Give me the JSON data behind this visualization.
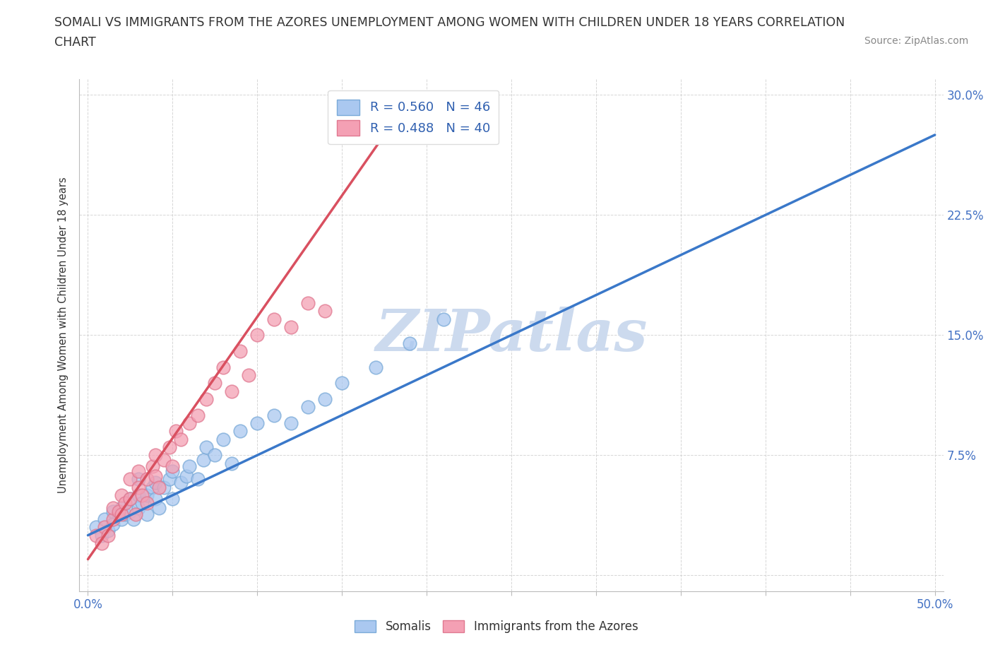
{
  "title_line1": "SOMALI VS IMMIGRANTS FROM THE AZORES UNEMPLOYMENT AMONG WOMEN WITH CHILDREN UNDER 18 YEARS CORRELATION",
  "title_line2": "CHART",
  "source": "Source: ZipAtlas.com",
  "ylabel": "Unemployment Among Women with Children Under 18 years",
  "xlim": [
    -0.005,
    0.505
  ],
  "ylim": [
    -0.01,
    0.31
  ],
  "xticks": [
    0.0,
    0.05,
    0.1,
    0.15,
    0.2,
    0.25,
    0.3,
    0.35,
    0.4,
    0.45,
    0.5
  ],
  "xtick_labels": [
    "0.0%",
    "",
    "",
    "",
    "",
    "",
    "",
    "",
    "",
    "",
    "50.0%"
  ],
  "yticks": [
    0.0,
    0.075,
    0.15,
    0.225,
    0.3
  ],
  "ytick_labels": [
    "",
    "7.5%",
    "15.0%",
    "22.5%",
    "30.0%"
  ],
  "somali_R": 0.56,
  "somali_N": 46,
  "azores_R": 0.488,
  "azores_N": 40,
  "somali_color": "#aac8f0",
  "somali_edge_color": "#7aaad8",
  "azores_color": "#f4a0b4",
  "azores_edge_color": "#e07890",
  "somali_line_color": "#3a78c9",
  "azores_line_color": "#d95060",
  "watermark": "ZIPatlas",
  "watermark_color": "#ccdaee",
  "somali_x": [
    0.005,
    0.008,
    0.01,
    0.012,
    0.015,
    0.015,
    0.018,
    0.02,
    0.02,
    0.022,
    0.025,
    0.025,
    0.027,
    0.03,
    0.03,
    0.03,
    0.032,
    0.035,
    0.035,
    0.038,
    0.04,
    0.04,
    0.042,
    0.045,
    0.048,
    0.05,
    0.05,
    0.055,
    0.058,
    0.06,
    0.065,
    0.068,
    0.07,
    0.075,
    0.08,
    0.085,
    0.09,
    0.1,
    0.11,
    0.12,
    0.13,
    0.14,
    0.15,
    0.17,
    0.19,
    0.21
  ],
  "somali_y": [
    0.03,
    0.025,
    0.035,
    0.028,
    0.032,
    0.04,
    0.038,
    0.035,
    0.042,
    0.038,
    0.04,
    0.048,
    0.035,
    0.042,
    0.05,
    0.06,
    0.045,
    0.05,
    0.038,
    0.055,
    0.048,
    0.058,
    0.042,
    0.055,
    0.06,
    0.048,
    0.065,
    0.058,
    0.062,
    0.068,
    0.06,
    0.072,
    0.08,
    0.075,
    0.085,
    0.07,
    0.09,
    0.095,
    0.1,
    0.095,
    0.105,
    0.11,
    0.12,
    0.13,
    0.145,
    0.16
  ],
  "azores_x": [
    0.005,
    0.008,
    0.01,
    0.012,
    0.015,
    0.015,
    0.018,
    0.02,
    0.02,
    0.022,
    0.025,
    0.025,
    0.028,
    0.03,
    0.03,
    0.032,
    0.035,
    0.035,
    0.038,
    0.04,
    0.04,
    0.042,
    0.045,
    0.048,
    0.05,
    0.052,
    0.055,
    0.06,
    0.065,
    0.07,
    0.075,
    0.08,
    0.085,
    0.09,
    0.095,
    0.1,
    0.11,
    0.12,
    0.13,
    0.14
  ],
  "azores_y": [
    0.025,
    0.02,
    0.03,
    0.025,
    0.035,
    0.042,
    0.04,
    0.038,
    0.05,
    0.045,
    0.048,
    0.06,
    0.038,
    0.055,
    0.065,
    0.05,
    0.06,
    0.045,
    0.068,
    0.062,
    0.075,
    0.055,
    0.072,
    0.08,
    0.068,
    0.09,
    0.085,
    0.095,
    0.1,
    0.11,
    0.12,
    0.13,
    0.115,
    0.14,
    0.125,
    0.15,
    0.16,
    0.155,
    0.17,
    0.165
  ],
  "somali_line_x0": 0.0,
  "somali_line_y0": 0.025,
  "somali_line_x1": 0.5,
  "somali_line_y1": 0.275,
  "azores_line_x0": 0.0,
  "azores_line_y0": 0.01,
  "azores_line_x1": 0.175,
  "azores_line_y1": 0.275
}
